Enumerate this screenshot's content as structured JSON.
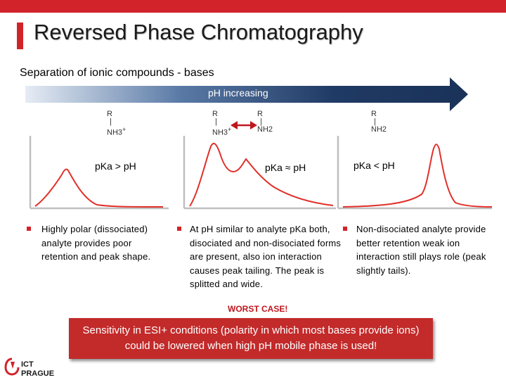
{
  "slide": {
    "title": "Reversed Phase Chromatography",
    "subtitle": "Separation of ionic compounds - bases",
    "arrow_label": "pH increasing"
  },
  "structures": {
    "left": {
      "r": "R",
      "bond": "|",
      "group": "NH3",
      "charge": "+"
    },
    "mid_left": {
      "r": "R",
      "bond": "|",
      "group": "NH3",
      "charge": "+"
    },
    "mid_right": {
      "r": "R",
      "bond": "|",
      "group": "NH2"
    },
    "right": {
      "r": "R",
      "bond": "|",
      "group": "NH2"
    }
  },
  "panels": [
    {
      "condition": "pKa > pH",
      "text": "Highly polar (dissociated) analyte provides poor retention and peak shape."
    },
    {
      "condition": "pKa ≈ pH",
      "text": "At pH similar to analyte pKa both, disociated and non-disociated forms are present, also ion interaction causes peak tailing. The peak is splitted and wide.",
      "emphasis": "WORST CASE!"
    },
    {
      "condition": "pKa < pH",
      "text": "Non-disociated analyte provide better retention weak ion interaction still plays role (peak slightly tails)."
    }
  ],
  "note": "Sensitivity in ESI+ conditions (polarity in which most bases provide ions) could be lowered when high pH mobile phase is used!",
  "logo": {
    "line1": "ICT",
    "line2": "PRAGUE"
  },
  "colors": {
    "accent": "#d2232a",
    "arrow_dark": "#1f3a64",
    "arrow_light": "#e6ecf5",
    "peak": "#e0302a",
    "note_bg": "#c32a2a"
  }
}
